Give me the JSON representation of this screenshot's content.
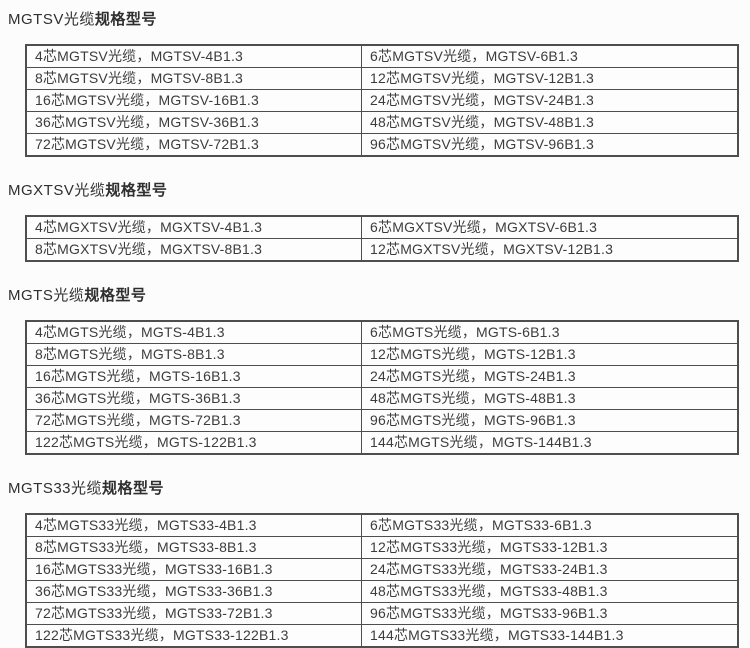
{
  "colors": {
    "background": "#fcfcfc",
    "text": "#3c3c3c",
    "heading_text": "#2f2f2f",
    "table_border": "#4e4e4e"
  },
  "sections": [
    {
      "heading_prefix": "MGTSV光缆",
      "heading_suffix": "规格型号",
      "rows": [
        [
          "4芯MGTSV光缆，MGTSV-4B1.3",
          "6芯MGTSV光缆，MGTSV-6B1.3"
        ],
        [
          "8芯MGTSV光缆，MGTSV-8B1.3",
          "12芯MGTSV光缆，MGTSV-12B1.3"
        ],
        [
          "16芯MGTSV光缆，MGTSV-16B1.3",
          "24芯MGTSV光缆，MGTSV-24B1.3"
        ],
        [
          "36芯MGTSV光缆，MGTSV-36B1.3",
          "48芯MGTSV光缆，MGTSV-48B1.3"
        ],
        [
          "72芯MGTSV光缆，MGTSV-72B1.3",
          "96芯MGTSV光缆，MGTSV-96B1.3"
        ]
      ]
    },
    {
      "heading_prefix": "MGXTSV光缆",
      "heading_suffix": "规格型号",
      "rows": [
        [
          "4芯MGXTSV光缆，MGXTSV-4B1.3",
          "6芯MGXTSV光缆，MGXTSV-6B1.3"
        ],
        [
          "8芯MGXTSV光缆，MGXTSV-8B1.3",
          "12芯MGXTSV光缆，MGXTSV-12B1.3"
        ]
      ]
    },
    {
      "heading_prefix": "MGTS光缆",
      "heading_suffix": "规格型号",
      "rows": [
        [
          "4芯MGTS光缆，MGTS-4B1.3",
          "6芯MGTS光缆，MGTS-6B1.3"
        ],
        [
          "8芯MGTS光缆，MGTS-8B1.3",
          "12芯MGTS光缆，MGTS-12B1.3"
        ],
        [
          "16芯MGTS光缆，MGTS-16B1.3",
          "24芯MGTS光缆，MGTS-24B1.3"
        ],
        [
          "36芯MGTS光缆，MGTS-36B1.3",
          "48芯MGTS光缆，MGTS-48B1.3"
        ],
        [
          "72芯MGTS光缆，MGTS-72B1.3",
          "96芯MGTS光缆，MGTS-96B1.3"
        ],
        [
          "122芯MGTS光缆，MGTS-122B1.3",
          "144芯MGTS光缆，MGTS-144B1.3"
        ]
      ]
    },
    {
      "heading_prefix": "MGTS33光缆",
      "heading_suffix": "规格型号",
      "rows": [
        [
          "4芯MGTS33光缆，MGTS33-4B1.3",
          "6芯MGTS33光缆，MGTS33-6B1.3"
        ],
        [
          "8芯MGTS33光缆，MGTS33-8B1.3",
          "12芯MGTS33光缆，MGTS33-12B1.3"
        ],
        [
          "16芯MGTS33光缆，MGTS33-16B1.3",
          "24芯MGTS33光缆，MGTS33-24B1.3"
        ],
        [
          "36芯MGTS33光缆，MGTS33-36B1.3",
          "48芯MGTS33光缆，MGTS33-48B1.3"
        ],
        [
          "72芯MGTS33光缆，MGTS33-72B1.3",
          "96芯MGTS33光缆，MGTS33-96B1.3"
        ],
        [
          "122芯MGTS33光缆，MGTS33-122B1.3",
          "144芯MGTS33光缆，MGTS33-144B1.3"
        ]
      ]
    }
  ]
}
